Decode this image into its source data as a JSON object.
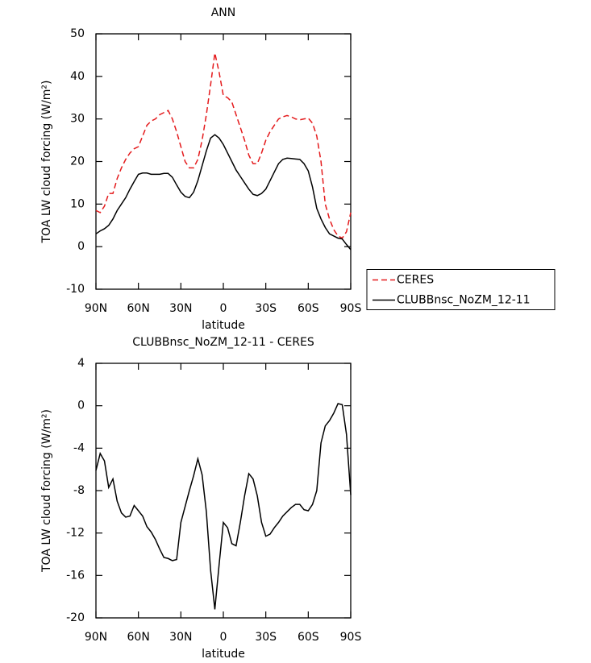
{
  "chart_data": [
    {
      "type": "line",
      "title": "ANN",
      "x_label": "latitude",
      "y_label": "TOA LW cloud forcing (W/m²)",
      "x": [
        90,
        87,
        84,
        81,
        78,
        75,
        72,
        69,
        66,
        63,
        60,
        57,
        54,
        51,
        48,
        45,
        42,
        39,
        36,
        33,
        30,
        27,
        24,
        21,
        18,
        15,
        12,
        9,
        6,
        3,
        0,
        -3,
        -6,
        -9,
        -12,
        -15,
        -18,
        -21,
        -24,
        -27,
        -30,
        -33,
        -36,
        -39,
        -42,
        -45,
        -48,
        -51,
        -54,
        -57,
        -60,
        -63,
        -66,
        -69,
        -72,
        -75,
        -78,
        -81,
        -84,
        -87,
        -90
      ],
      "series": [
        {
          "name": "CERES",
          "color": "#e41a1c",
          "linestyle": "dashed",
          "values": [
            8.5,
            8,
            9.5,
            12.5,
            12.5,
            16,
            18.5,
            20.5,
            22,
            23,
            23.5,
            26,
            28.5,
            29.5,
            30,
            31,
            31.5,
            32,
            30,
            27,
            23.5,
            20,
            18.5,
            18.5,
            20.5,
            25,
            31,
            38,
            45.5,
            41,
            35.5,
            35,
            34,
            31,
            28,
            25,
            21.5,
            19.5,
            19.5,
            22,
            25,
            27,
            28.5,
            30,
            30.5,
            30.8,
            30.5,
            30,
            29.8,
            30,
            30.2,
            29,
            26,
            20,
            10,
            6.5,
            4,
            2.5,
            2,
            3.5,
            8
          ]
        },
        {
          "name": "CLUBBnsc_NoZM_12-11",
          "color": "#000000",
          "linestyle": "solid",
          "values": [
            3,
            3.7,
            4.2,
            5,
            6.5,
            8.5,
            10,
            11.5,
            13.5,
            15.3,
            17,
            17.3,
            17.3,
            17,
            17,
            17,
            17.2,
            17.2,
            16.3,
            14.5,
            12.8,
            11.8,
            11.5,
            12.8,
            15.5,
            19,
            22.5,
            25.5,
            26.3,
            25.5,
            24,
            22,
            20,
            18,
            16.5,
            15,
            13.5,
            12.3,
            12,
            12.5,
            13.5,
            15.5,
            17.5,
            19.5,
            20.5,
            20.8,
            20.7,
            20.6,
            20.5,
            19.5,
            17.8,
            14,
            9,
            6.5,
            4.5,
            3,
            2.5,
            2,
            1.8,
            0.5,
            -0.7
          ]
        }
      ],
      "xlim": [
        90,
        -90
      ],
      "xticks": [
        {
          "value": 90,
          "label": "90N"
        },
        {
          "value": 60,
          "label": "60N"
        },
        {
          "value": 30,
          "label": "30N"
        },
        0,
        {
          "value": -30,
          "label": "30S"
        },
        {
          "value": -60,
          "label": "60S"
        },
        {
          "value": -90,
          "label": "90S"
        }
      ],
      "ylim": [
        -10,
        50
      ],
      "yticks": [
        -10,
        0,
        10,
        20,
        30,
        40,
        50
      ],
      "legend": "right"
    },
    {
      "type": "line",
      "title": "CLUBBnsc_NoZM_12-11 - CERES",
      "x_label": "latitude",
      "y_label": "TOA LW cloud forcing (W/m²)",
      "x": [
        90,
        87,
        84,
        81,
        78,
        75,
        72,
        69,
        66,
        63,
        60,
        57,
        54,
        51,
        48,
        45,
        42,
        39,
        36,
        33,
        30,
        27,
        24,
        21,
        18,
        15,
        12,
        9,
        6,
        3,
        0,
        -3,
        -6,
        -9,
        -12,
        -15,
        -18,
        -21,
        -24,
        -27,
        -30,
        -33,
        -36,
        -39,
        -42,
        -45,
        -48,
        -51,
        -54,
        -57,
        -60,
        -63,
        -66,
        -69,
        -72,
        -75,
        -78,
        -81,
        -84,
        -87,
        -90
      ],
      "series": [
        {
          "color": "#000000",
          "linestyle": "solid",
          "values": [
            -6.1,
            -4.5,
            -5.2,
            -7.7,
            -6.9,
            -9,
            -10.1,
            -10.5,
            -10.4,
            -9.4,
            -9.9,
            -10.4,
            -11.4,
            -11.9,
            -12.6,
            -13.5,
            -14.3,
            -14.4,
            -14.6,
            -14.5,
            -11,
            -9.5,
            -8,
            -6.6,
            -5,
            -6.5,
            -10,
            -15.5,
            -19.2,
            -15,
            -11,
            -11.5,
            -13,
            -13.2,
            -11,
            -8.5,
            -6.4,
            -6.9,
            -8.5,
            -11,
            -12.3,
            -12.1,
            -11.5,
            -11,
            -10.4,
            -10,
            -9.6,
            -9.3,
            -9.3,
            -9.8,
            -9.9,
            -9.3,
            -8,
            -3.5,
            -1.9,
            -1.4,
            -0.7,
            0.2,
            0.1,
            -2.7,
            -8.4
          ]
        }
      ],
      "xlim": [
        90,
        -90
      ],
      "xticks": [
        {
          "value": 90,
          "label": "90N"
        },
        {
          "value": 60,
          "label": "60N"
        },
        {
          "value": 30,
          "label": "30N"
        },
        0,
        {
          "value": -30,
          "label": "30S"
        },
        {
          "value": -60,
          "label": "60S"
        },
        {
          "value": -90,
          "label": "90S"
        }
      ],
      "ylim": [
        -20,
        4
      ],
      "yticks": [
        -20,
        -16,
        -12,
        -8,
        -4,
        0,
        4
      ]
    }
  ]
}
